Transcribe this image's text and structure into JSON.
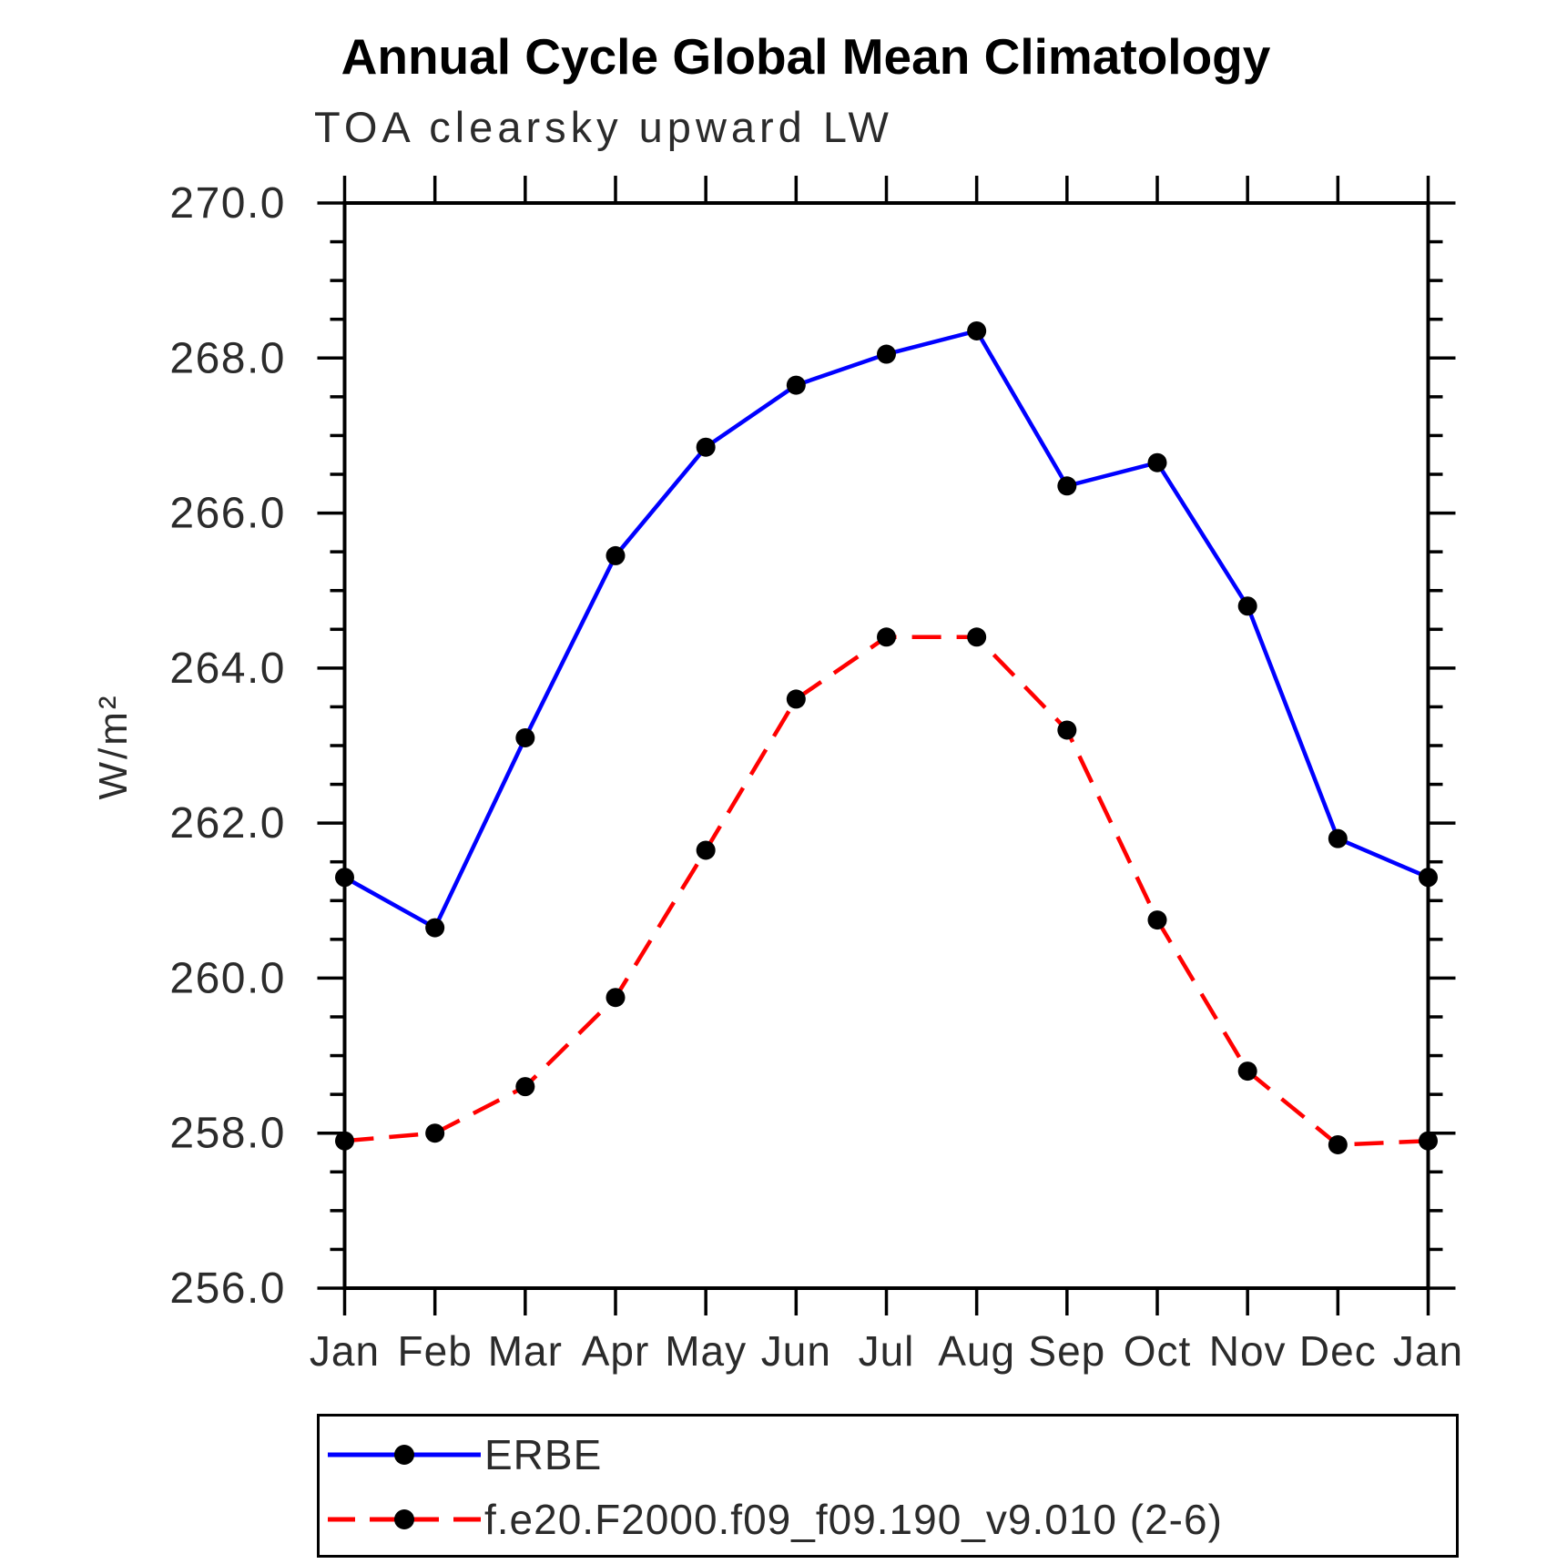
{
  "chart_data": {
    "type": "line",
    "title": "Annual Cycle Global Mean Climatology",
    "subtitle": "TOA clearsky upward LW",
    "ylabel": "W/m²",
    "xlabel": "",
    "categories": [
      "Jan",
      "Feb",
      "Mar",
      "Apr",
      "May",
      "Jun",
      "Jul",
      "Aug",
      "Sep",
      "Oct",
      "Nov",
      "Dec",
      "Jan"
    ],
    "ylim": [
      256.0,
      270.0
    ],
    "y_major_step": 2.0,
    "y_minor_step": 0.5,
    "y_tick_labels": [
      "256.0",
      "258.0",
      "260.0",
      "262.0",
      "264.0",
      "266.0",
      "268.0",
      "270.0"
    ],
    "grid": false,
    "legend_position": "bottom",
    "series": [
      {
        "name": "ERBE",
        "color": "#0000ff",
        "line_style": "solid",
        "marker": "circle",
        "marker_color": "#000000",
        "values": [
          261.3,
          260.65,
          263.1,
          265.45,
          266.85,
          267.65,
          268.05,
          268.35,
          266.35,
          266.65,
          264.8,
          261.8,
          261.3
        ]
      },
      {
        "name": "f.e20.F2000.f09_f09.190_v9.010 (2-6)",
        "color": "#ff0000",
        "line_style": "dashed",
        "marker": "circle",
        "marker_color": "#000000",
        "values": [
          257.9,
          258.0,
          258.6,
          259.75,
          261.65,
          263.6,
          264.4,
          264.4,
          263.2,
          260.75,
          258.8,
          257.85,
          257.9
        ]
      }
    ]
  }
}
